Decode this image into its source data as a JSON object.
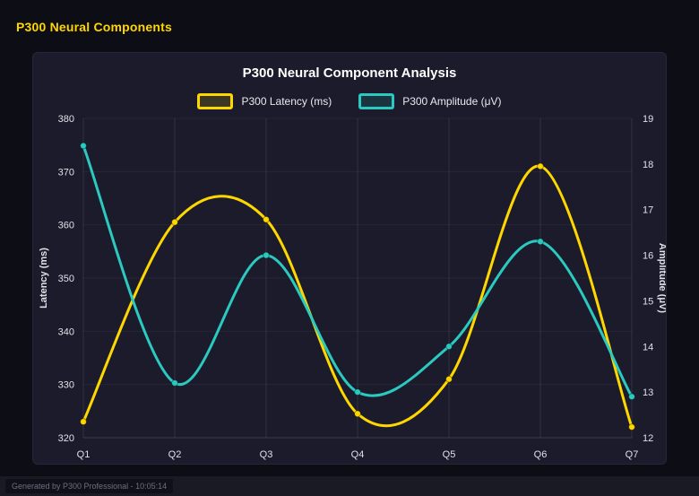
{
  "page": {
    "heading": "P300 Neural Components",
    "footer": "Generated by P300 Professional - 10:05:14"
  },
  "chart_data": {
    "type": "line",
    "title": "P300 Neural Component Analysis",
    "categories": [
      "Q1",
      "Q2",
      "Q3",
      "Q4",
      "Q5",
      "Q6",
      "Q7"
    ],
    "series": [
      {
        "name": "P300 Latency (ms)",
        "axis": "left",
        "color": "#FFD700",
        "values": [
          323,
          360.5,
          361,
          324.5,
          331,
          371,
          322
        ]
      },
      {
        "name": "P300 Amplitude (μV)",
        "axis": "right",
        "color": "#2BC9BF",
        "values": [
          18.4,
          13.2,
          16.0,
          13.0,
          14.0,
          16.3,
          12.9
        ]
      }
    ],
    "left_axis": {
      "label": "Latency (ms)",
      "min": 320,
      "max": 380,
      "step": 10
    },
    "right_axis": {
      "label": "Amplitude (μV)",
      "min": 12,
      "max": 19,
      "step": 1
    },
    "legend_position": "top",
    "grid": "vertical",
    "line_style": "smooth",
    "colors": {
      "panel_bg": "#1b1b2b",
      "page_bg": "#0d0d16",
      "grid": "rgba(255,255,255,0.10)",
      "tick_text": "#e0e0e8"
    }
  }
}
